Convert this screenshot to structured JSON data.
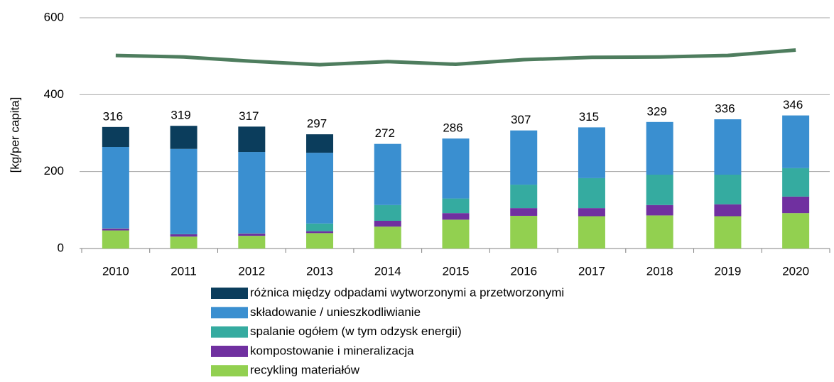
{
  "chart_data": {
    "type": "stacked-bar-line",
    "ylabel": "[kg/per capita]",
    "categories": [
      "2010",
      "2011",
      "2012",
      "2013",
      "2014",
      "2015",
      "2016",
      "2017",
      "2018",
      "2019",
      "2020"
    ],
    "series": [
      {
        "name": "recykling materiałów",
        "color": "#92d050",
        "values": [
          47,
          31,
          33,
          40,
          57,
          75,
          85,
          84,
          86,
          84,
          92
        ]
      },
      {
        "name": "kompostowanie i mineralizacja",
        "color": "#7030a0",
        "values": [
          5,
          6,
          6,
          5,
          15,
          17,
          20,
          21,
          27,
          31,
          43
        ]
      },
      {
        "name": "spalanie ogółem (w tym odzysk energii)",
        "color": "#35aba0",
        "values": [
          1,
          1,
          1,
          20,
          41,
          38,
          61,
          78,
          79,
          77,
          74
        ]
      },
      {
        "name": "składowanie / unieszkodliwianie",
        "color": "#3a8fd0",
        "values": [
          211,
          221,
          211,
          184,
          159,
          156,
          141,
          132,
          137,
          144,
          137
        ]
      },
      {
        "name": "różnica między odpadami wytworzonymi a przetworzonymi",
        "color": "#0b3d5c",
        "values": [
          52,
          60,
          66,
          48,
          0,
          0,
          0,
          0,
          0,
          0,
          0
        ]
      }
    ],
    "totals": [
      316,
      319,
      317,
      297,
      272,
      286,
      307,
      315,
      329,
      336,
      346
    ],
    "line": {
      "color": "#4e7d5e",
      "values": [
        502,
        498,
        487,
        478,
        486,
        479,
        491,
        497,
        498,
        502,
        516
      ]
    },
    "ylim": [
      0,
      600
    ],
    "yticks": [
      0,
      200,
      400,
      600
    ],
    "grid": true
  }
}
